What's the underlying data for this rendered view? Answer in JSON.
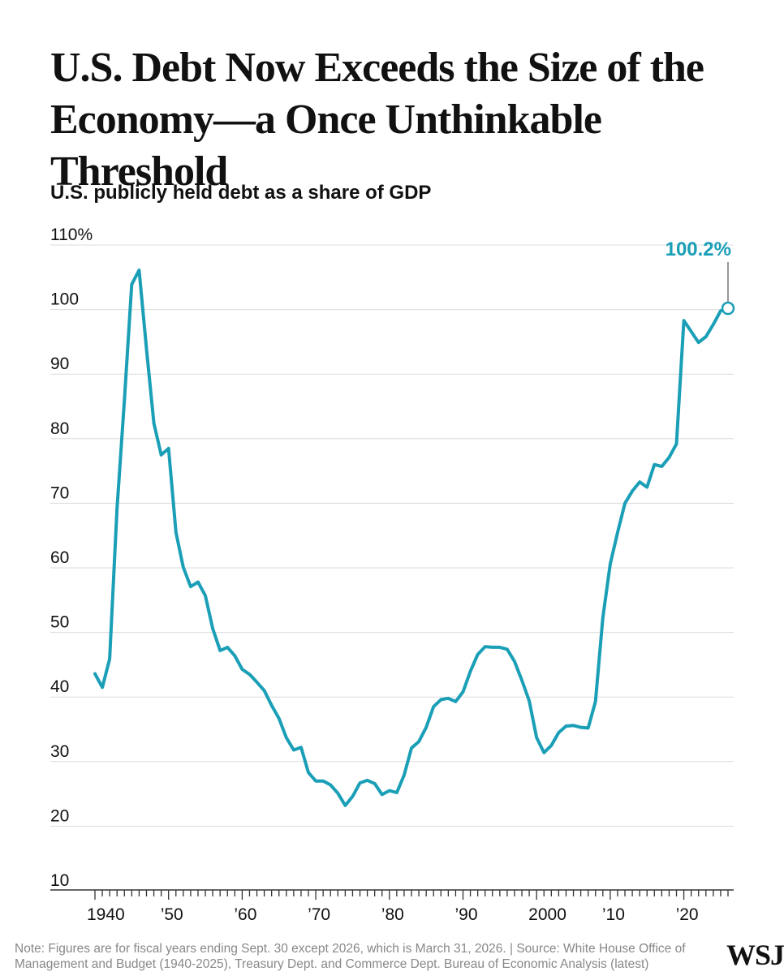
{
  "title": "U.S. Debt Now Exceeds the Size of the Economy—a Once Unthinkable Threshold",
  "subtitle": "U.S. publicly held debt as a share of GDP",
  "note": "Note: Figures are for fiscal years ending Sept. 30 except 2026, which is March 31, 2026. | Source: White House Office of Management and Budget (1940-2025), Treasury Dept. and Commerce Dept. Bureau of Economic Analysis (latest)",
  "logo": "WSJ",
  "colors": {
    "line": "#1a9fb7",
    "grid": "#dddddd",
    "axis": "#333333",
    "text": "#111111"
  },
  "chart_data": {
    "type": "line",
    "ylim": [
      10,
      110
    ],
    "xlim": [
      1940,
      2026
    ],
    "grid": true,
    "y_ticks": [
      {
        "value": 110,
        "label": "110%"
      },
      {
        "value": 100,
        "label": "100"
      },
      {
        "value": 90,
        "label": "90"
      },
      {
        "value": 80,
        "label": "80"
      },
      {
        "value": 70,
        "label": "70"
      },
      {
        "value": 60,
        "label": "60"
      },
      {
        "value": 50,
        "label": "50"
      },
      {
        "value": 40,
        "label": "40"
      },
      {
        "value": 30,
        "label": "30"
      },
      {
        "value": 20,
        "label": "20"
      },
      {
        "value": 10,
        "label": "10"
      }
    ],
    "x_ticks": [
      {
        "value": 1940,
        "label": "1940"
      },
      {
        "value": 1950,
        "label": "’50"
      },
      {
        "value": 1960,
        "label": "’60"
      },
      {
        "value": 1970,
        "label": "’70"
      },
      {
        "value": 1980,
        "label": "’80"
      },
      {
        "value": 1990,
        "label": "’90"
      },
      {
        "value": 2000,
        "label": "2000"
      },
      {
        "value": 2010,
        "label": "’10"
      },
      {
        "value": 2020,
        "label": "’20"
      }
    ],
    "annotation": {
      "x": 2026,
      "y": 100.2,
      "label": "100.2%"
    },
    "series": [
      {
        "x": [
          1940,
          1941,
          1942,
          1943,
          1944,
          1945,
          1946,
          1947,
          1948,
          1949,
          1950,
          1951,
          1952,
          1953,
          1954,
          1955,
          1956,
          1957,
          1958,
          1959,
          1960,
          1961,
          1962,
          1963,
          1964,
          1965,
          1966,
          1967,
          1968,
          1969,
          1970,
          1971,
          1972,
          1973,
          1974,
          1975,
          1976,
          1977,
          1978,
          1979,
          1980,
          1981,
          1982,
          1983,
          1984,
          1985,
          1986,
          1987,
          1988,
          1989,
          1990,
          1991,
          1992,
          1993,
          1994,
          1995,
          1996,
          1997,
          1998,
          1999,
          2000,
          2001,
          2002,
          2003,
          2004,
          2005,
          2006,
          2007,
          2008,
          2009,
          2010,
          2011,
          2012,
          2013,
          2014,
          2015,
          2016,
          2017,
          2018,
          2019,
          2020,
          2021,
          2022,
          2023,
          2024,
          2025,
          2026
        ],
        "y": [
          43.6,
          41.5,
          45.9,
          69.2,
          86.0,
          103.9,
          106.1,
          93.9,
          82.4,
          77.5,
          78.5,
          65.5,
          60.1,
          57.1,
          57.8,
          55.7,
          50.6,
          47.2,
          47.7,
          46.4,
          44.3,
          43.5,
          42.3,
          41.0,
          38.7,
          36.7,
          33.7,
          31.8,
          32.2,
          28.3,
          27.0,
          27.0,
          26.4,
          25.1,
          23.2,
          24.6,
          26.7,
          27.1,
          26.6,
          24.9,
          25.5,
          25.2,
          27.9,
          32.1,
          33.1,
          35.3,
          38.5,
          39.6,
          39.8,
          39.3,
          40.8,
          44.0,
          46.6,
          47.8,
          47.7,
          47.7,
          47.4,
          45.5,
          42.6,
          39.4,
          33.7,
          31.4,
          32.5,
          34.5,
          35.5,
          35.6,
          35.3,
          35.2,
          39.3,
          52.3,
          60.6,
          65.5,
          70.0,
          71.9,
          73.3,
          72.5,
          76.0,
          75.7,
          77.1,
          79.2,
          98.3,
          96.6,
          94.9,
          95.8,
          97.7,
          99.8,
          100.2
        ]
      }
    ]
  }
}
